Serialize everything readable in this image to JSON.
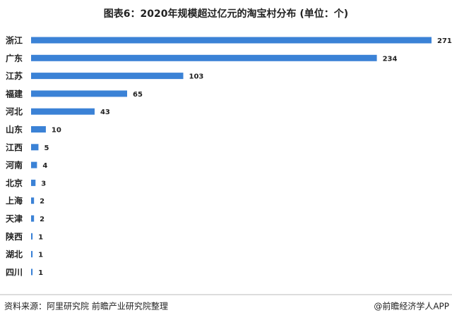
{
  "chart_data": {
    "type": "bar",
    "orientation": "horizontal",
    "title": "图表6：2020年规模超过亿元的淘宝村分布 (单位：个)",
    "categories": [
      "浙江",
      "广东",
      "江苏",
      "福建",
      "河北",
      "山东",
      "江西",
      "河南",
      "北京",
      "上海",
      "天津",
      "陕西",
      "湖北",
      "四川"
    ],
    "values": [
      271,
      234,
      103,
      65,
      43,
      10,
      5,
      4,
      3,
      2,
      2,
      1,
      1,
      1
    ],
    "color": "#3b82d6",
    "source": "资料来源：阿里研究院   前瞻产业研究院整理",
    "credit": "@前瞻经济学人APP"
  }
}
